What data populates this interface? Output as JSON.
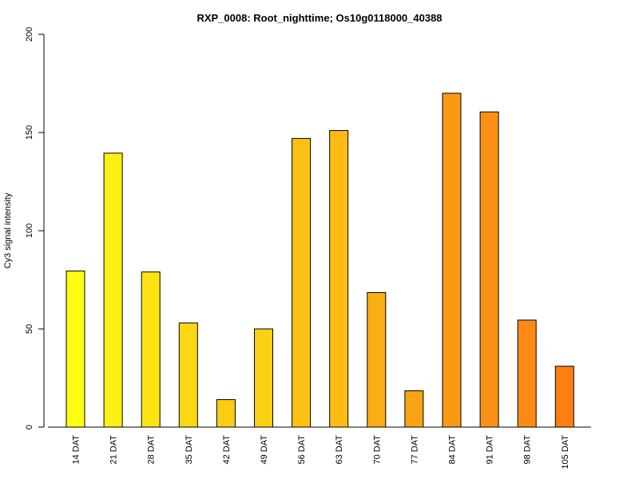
{
  "chart_data": {
    "type": "bar",
    "title": "RXP_0008: Root_nighttime; Os10g0118000_40388",
    "xlabel": "",
    "ylabel": "Cy3 signal intensity",
    "ylim": [
      0,
      200
    ],
    "yticks": [
      0,
      50,
      100,
      150,
      200
    ],
    "categories": [
      "14 DAT",
      "21 DAT",
      "28 DAT",
      "35 DAT",
      "42 DAT",
      "49 DAT",
      "56 DAT",
      "63 DAT",
      "70 DAT",
      "77 DAT",
      "84 DAT",
      "91 DAT",
      "98 DAT",
      "105 DAT"
    ],
    "values": [
      79.5,
      139.5,
      79,
      53,
      14,
      50,
      147,
      151,
      68.5,
      18.5,
      170,
      160.5,
      54.5,
      31
    ],
    "colors": [
      "#ffff14",
      "#fef014",
      "#fde414",
      "#fcd814",
      "#fbcc14",
      "#facf14",
      "#fcc114",
      "#ffbb14",
      "#fbae14",
      "#f9a314",
      "#fa9914",
      "#fb9114",
      "#fc8a14",
      "#fd7f14"
    ],
    "grid": false,
    "legend": "none"
  }
}
